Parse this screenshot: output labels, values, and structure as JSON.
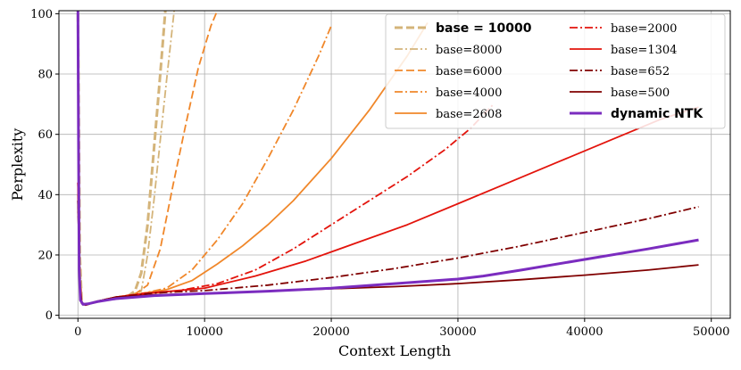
{
  "chart_data": {
    "type": "line",
    "title": "",
    "xlabel": "Context Length",
    "ylabel": "Perplexity",
    "xlim": [
      -1500,
      51500
    ],
    "ylim": [
      -1,
      101
    ],
    "xticks": [
      0,
      10000,
      20000,
      30000,
      40000,
      50000
    ],
    "yticks": [
      0,
      20,
      40,
      60,
      80,
      100
    ],
    "grid": true,
    "legend_position": "top-right",
    "series": [
      {
        "name": "base = 10000",
        "color": "#d4b47a",
        "dash": "dashed",
        "width": 3.0,
        "bold": true,
        "x": [
          0,
          150,
          300,
          600,
          1200,
          2000,
          3000,
          4000,
          4500,
          5000,
          5500,
          6000,
          6300,
          6600,
          6900
        ],
        "y": [
          100,
          20,
          4,
          3.5,
          4.2,
          5,
          5.8,
          6.5,
          8,
          14,
          30,
          55,
          70,
          85,
          101
        ]
      },
      {
        "name": "base=8000",
        "color": "#d4b47a",
        "dash": "dashdot",
        "width": 1.8,
        "x": [
          0,
          150,
          300,
          600,
          1200,
          2000,
          3000,
          4000,
          5000,
          5500,
          6000,
          6500,
          7000,
          7600
        ],
        "y": [
          100,
          20,
          4,
          3.5,
          4.2,
          5,
          5.8,
          6.5,
          8,
          20,
          38,
          58,
          78,
          101
        ]
      },
      {
        "name": "base=6000",
        "color": "#f0872a",
        "dash": "dashed",
        "width": 1.8,
        "x": [
          0,
          150,
          300,
          600,
          1500,
          3000,
          4500,
          5500,
          6500,
          7500,
          8500,
          9500,
          10500,
          11000
        ],
        "y": [
          40,
          12,
          4,
          3.4,
          4.5,
          5.8,
          7,
          10,
          22,
          43,
          63,
          82,
          96,
          101
        ]
      },
      {
        "name": "base=4000",
        "color": "#f0872a",
        "dash": "dashdot",
        "width": 1.8,
        "x": [
          0,
          150,
          300,
          600,
          1500,
          3000,
          5000,
          7000,
          9000,
          11000,
          13000,
          15000,
          17000,
          19000,
          20000
        ],
        "y": [
          40,
          12,
          4,
          3.4,
          4.6,
          6,
          7.2,
          9,
          15,
          25,
          37,
          52,
          68,
          86,
          96
        ]
      },
      {
        "name": "base=2608",
        "color": "#f0872a",
        "dash": "solid",
        "width": 1.8,
        "x": [
          0,
          150,
          300,
          600,
          1500,
          3000,
          5000,
          7000,
          9000,
          11000,
          13000,
          15000,
          17000,
          20000,
          23000,
          26000,
          27600
        ],
        "y": [
          44,
          12,
          4,
          3.4,
          4.6,
          6,
          7.2,
          8.5,
          11.5,
          17,
          23,
          30,
          38,
          52,
          68,
          86,
          97
        ]
      },
      {
        "name": "base=2000",
        "color": "#e3140c",
        "dash": "dashdot",
        "width": 1.8,
        "x": [
          0,
          150,
          300,
          600,
          1500,
          3000,
          5000,
          8000,
          11000,
          14000,
          17000,
          20000,
          23000,
          26000,
          29000,
          31000,
          32800
        ],
        "y": [
          44,
          12,
          4,
          3.4,
          4.6,
          6,
          7.2,
          8.2,
          10.5,
          15,
          22,
          30,
          38,
          46,
          55,
          62,
          70
        ]
      },
      {
        "name": "base=1304",
        "color": "#e3140c",
        "dash": "solid",
        "width": 1.8,
        "x": [
          0,
          150,
          300,
          600,
          1500,
          3000,
          6000,
          10000,
          14000,
          18000,
          22000,
          26000,
          30000,
          34000,
          38000,
          42000,
          46000,
          49000
        ],
        "y": [
          44,
          12,
          4,
          3.4,
          4.6,
          6,
          7.5,
          9,
          13,
          18,
          24,
          30,
          37,
          44,
          51,
          58,
          65,
          69
        ]
      },
      {
        "name": "base=652",
        "color": "#800000",
        "dash": "dashdot",
        "width": 1.8,
        "x": [
          0,
          150,
          300,
          600,
          1500,
          3000,
          6000,
          10000,
          15000,
          20000,
          25000,
          30000,
          35000,
          40000,
          45000,
          49000
        ],
        "y": [
          38,
          10,
          4,
          3.4,
          4.6,
          6,
          7.4,
          8.2,
          10,
          12.5,
          15.5,
          19,
          23,
          27.5,
          32,
          36
        ]
      },
      {
        "name": "base=500",
        "color": "#800000",
        "dash": "solid",
        "width": 1.8,
        "x": [
          0,
          150,
          300,
          600,
          1500,
          3000,
          6000,
          10000,
          15000,
          20000,
          25000,
          30000,
          35000,
          40000,
          45000,
          49000
        ],
        "y": [
          38,
          10,
          4,
          3.4,
          4.6,
          6,
          6.8,
          7.2,
          8,
          8.8,
          9.5,
          10.5,
          11.8,
          13.3,
          15,
          16.7
        ]
      },
      {
        "name": "dynamic NTK",
        "color": "#7b2cbf",
        "dash": "solid",
        "width": 3.0,
        "bold": true,
        "x": [
          0,
          40,
          100,
          200,
          400,
          800,
          1500,
          3000,
          6000,
          10000,
          15000,
          20000,
          25000,
          30000,
          32000,
          35000,
          40000,
          45000,
          49000
        ],
        "y": [
          101,
          60,
          15,
          5,
          3.6,
          3.8,
          4.5,
          5.5,
          6.5,
          7.2,
          8,
          9,
          10.5,
          12,
          13,
          15,
          18.5,
          22,
          25
        ]
      }
    ]
  }
}
